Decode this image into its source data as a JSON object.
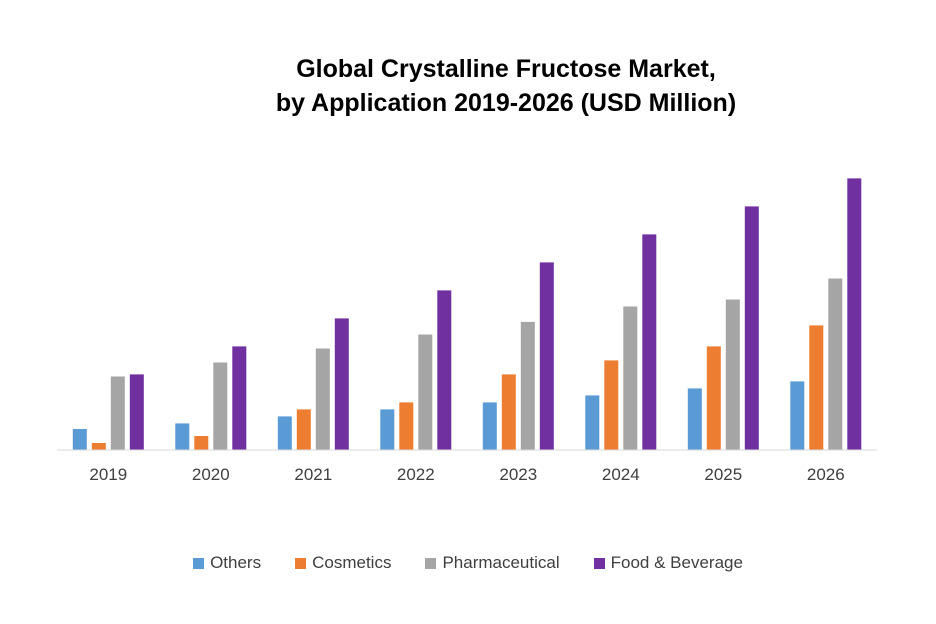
{
  "chart_data": {
    "type": "bar",
    "title_line1": "Global Crystalline Fructose Market,",
    "title_line2": "by Application 2019-2026 (USD Million)",
    "xlabel": "",
    "ylabel": "",
    "categories": [
      "2019",
      "2020",
      "2021",
      "2022",
      "2023",
      "2024",
      "2025",
      "2026"
    ],
    "series": [
      {
        "name": "Others",
        "color": "#5B9BD5",
        "values": [
          3.0,
          3.8,
          4.8,
          5.8,
          6.8,
          7.8,
          8.8,
          9.8
        ]
      },
      {
        "name": "Cosmetics",
        "color": "#ED7D31",
        "values": [
          1.0,
          2.0,
          5.8,
          6.8,
          10.8,
          12.8,
          14.8,
          17.8
        ]
      },
      {
        "name": "Pharmaceutical",
        "color": "#A5A5A5",
        "values": [
          10.5,
          12.5,
          14.5,
          16.5,
          18.3,
          20.5,
          21.5,
          24.5
        ]
      },
      {
        "name": "Food & Beverage",
        "color": "#7030A0",
        "values": [
          10.8,
          14.8,
          18.8,
          22.8,
          26.8,
          30.8,
          34.8,
          38.8
        ]
      }
    ],
    "ylim": [
      0,
      40
    ],
    "grid": false,
    "legend_position": "bottom"
  }
}
